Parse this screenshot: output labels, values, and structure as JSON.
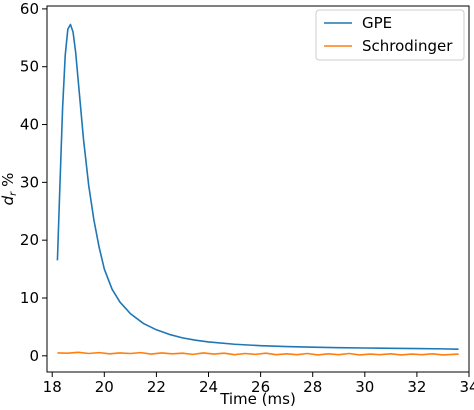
{
  "chart_data": {
    "type": "line",
    "title": "",
    "xlabel": "Time (ms)",
    "ylabel_main": "d",
    "ylabel_sub": "r",
    "ylabel_suffix": " %",
    "xlim": [
      17.8,
      34.0
    ],
    "ylim": [
      -2.8,
      60.5
    ],
    "xticks": [
      18,
      20,
      22,
      24,
      26,
      28,
      30,
      32,
      34
    ],
    "yticks": [
      0,
      10,
      20,
      30,
      40,
      50,
      60
    ],
    "grid": false,
    "legend_position": "top-right",
    "series": [
      {
        "name": "GPE",
        "color": "#1f77b4",
        "x": [
          18.2,
          18.3,
          18.4,
          18.5,
          18.6,
          18.7,
          18.8,
          18.9,
          19.0,
          19.2,
          19.4,
          19.6,
          19.8,
          20.0,
          20.3,
          20.6,
          21.0,
          21.5,
          22.0,
          22.5,
          23.0,
          23.5,
          24.0,
          25.0,
          26.0,
          27.0,
          28.0,
          29.0,
          30.0,
          31.0,
          32.0,
          33.0,
          33.6
        ],
        "y": [
          16.5,
          30.0,
          43.0,
          52.0,
          56.5,
          57.3,
          56.0,
          52.5,
          47.5,
          37.5,
          29.5,
          23.5,
          18.8,
          15.0,
          11.5,
          9.3,
          7.3,
          5.6,
          4.5,
          3.7,
          3.1,
          2.7,
          2.4,
          2.0,
          1.75,
          1.6,
          1.5,
          1.4,
          1.35,
          1.3,
          1.25,
          1.2,
          1.15
        ]
      },
      {
        "name": "Schrodinger",
        "color": "#ff7f0e",
        "x": [
          18.2,
          18.6,
          19.0,
          19.4,
          19.8,
          20.2,
          20.6,
          21.0,
          21.4,
          21.8,
          22.2,
          22.6,
          23.0,
          23.4,
          23.8,
          24.2,
          24.6,
          25.0,
          25.4,
          25.8,
          26.2,
          26.6,
          27.0,
          27.4,
          27.8,
          28.2,
          28.6,
          29.0,
          29.4,
          29.8,
          30.2,
          30.6,
          31.0,
          31.4,
          31.8,
          32.2,
          32.6,
          33.0,
          33.6
        ],
        "y": [
          0.5,
          0.45,
          0.6,
          0.4,
          0.55,
          0.35,
          0.5,
          0.4,
          0.55,
          0.3,
          0.5,
          0.35,
          0.45,
          0.25,
          0.5,
          0.3,
          0.45,
          0.2,
          0.4,
          0.25,
          0.45,
          0.2,
          0.35,
          0.2,
          0.4,
          0.15,
          0.35,
          0.2,
          0.4,
          0.15,
          0.3,
          0.2,
          0.35,
          0.15,
          0.3,
          0.2,
          0.35,
          0.15,
          0.3
        ]
      }
    ]
  }
}
